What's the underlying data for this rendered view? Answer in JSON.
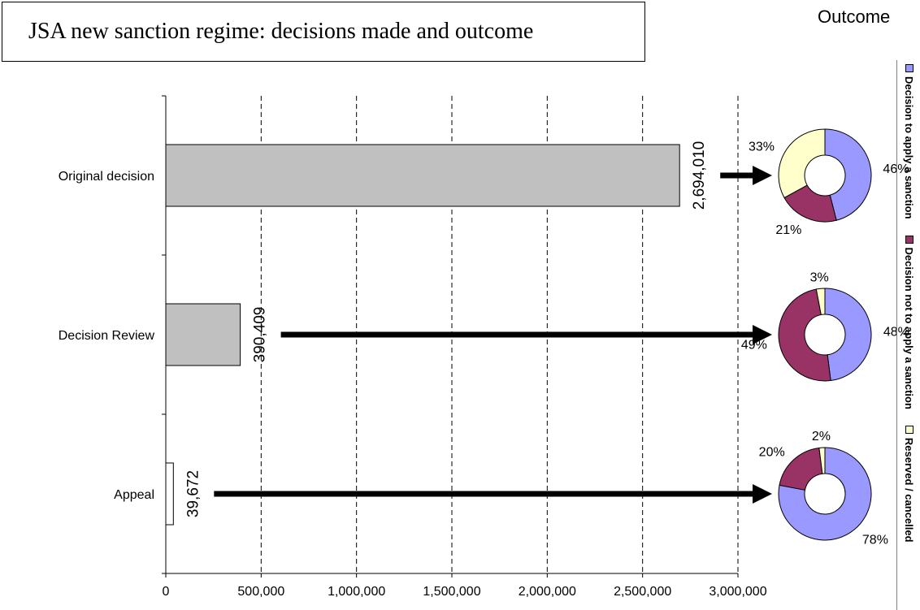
{
  "title": "JSA new sanction regime: decisions made and outcome",
  "outcome_heading": "Outcome",
  "colors": {
    "bar_fill": "#c0c0c0",
    "appeal_bar_fill": "#ffffff",
    "apply": "#9999ff",
    "not_apply": "#993366",
    "reserved": "#ffffcc",
    "arrow": "#000000"
  },
  "legend": [
    {
      "label": "Decision to apply a sanction",
      "color_key": "apply"
    },
    {
      "label": "Decision not to apply a sanction",
      "color_key": "not_apply"
    },
    {
      "label": "Reserved / cancelled",
      "color_key": "reserved"
    }
  ],
  "chart_data": [
    {
      "type": "bar",
      "orientation": "horizontal",
      "categories": [
        "Original decision",
        "Decision Review",
        "Appeal"
      ],
      "values": [
        2694010,
        390409,
        39672
      ],
      "value_labels": [
        "2,694,010",
        "390,409",
        "39,672"
      ],
      "xlim": [
        0,
        3000000
      ],
      "x_ticks": [
        0,
        500000,
        1000000,
        1500000,
        2000000,
        2500000,
        3000000
      ],
      "x_tick_labels": [
        "0",
        "500,000",
        "1,000,000",
        "1,500,000",
        "2,000,000",
        "2,500,000",
        "3,000,000"
      ],
      "grid": "vertical dashed"
    },
    {
      "type": "pie",
      "variant": "donut",
      "group": "Original decision",
      "slices": [
        {
          "name": "Decision to apply a sanction",
          "value": 46,
          "label": "46%"
        },
        {
          "name": "Decision not to apply a sanction",
          "value": 21,
          "label": "21%"
        },
        {
          "name": "Reserved / cancelled",
          "value": 33,
          "label": "33%"
        }
      ]
    },
    {
      "type": "pie",
      "variant": "donut",
      "group": "Decision Review",
      "slices": [
        {
          "name": "Decision to apply a sanction",
          "value": 48,
          "label": "48%"
        },
        {
          "name": "Decision not to apply a sanction",
          "value": 49,
          "label": "49%"
        },
        {
          "name": "Reserved / cancelled",
          "value": 3,
          "label": "3%"
        }
      ]
    },
    {
      "type": "pie",
      "variant": "donut",
      "group": "Appeal",
      "slices": [
        {
          "name": "Decision to apply a sanction",
          "value": 78,
          "label": "78%"
        },
        {
          "name": "Decision not to apply a sanction",
          "value": 20,
          "label": "20%"
        },
        {
          "name": "Reserved / cancelled",
          "value": 2,
          "label": "2%"
        }
      ]
    }
  ]
}
